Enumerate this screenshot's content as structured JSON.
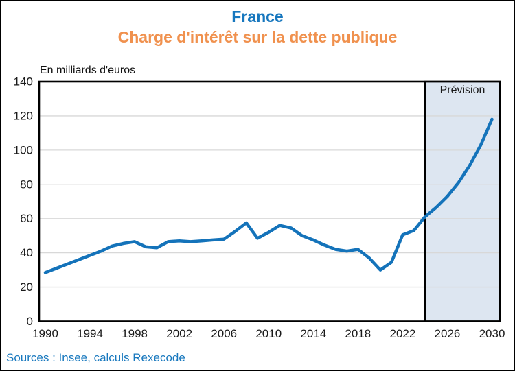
{
  "header": {
    "title": "France",
    "subtitle": "Charge d'intérêt sur la dette publique"
  },
  "footer": {
    "sources": "Sources : Insee, calculs Rexecode"
  },
  "chart_data": {
    "type": "line",
    "title": "France",
    "subtitle": "Charge d'intérêt sur la dette publique",
    "units_label": "En milliards d'euros",
    "x": [
      1990,
      1991,
      1992,
      1993,
      1994,
      1995,
      1996,
      1997,
      1998,
      1999,
      2000,
      2001,
      2002,
      2003,
      2004,
      2005,
      2006,
      2007,
      2008,
      2009,
      2010,
      2011,
      2012,
      2013,
      2014,
      2015,
      2016,
      2017,
      2018,
      2019,
      2020,
      2021,
      2022,
      2023,
      2024,
      2025,
      2026,
      2027,
      2028,
      2029,
      2030
    ],
    "series": [
      {
        "name": "Charge d'intérêt sur la dette publique (Md€)",
        "values": [
          28.5,
          31,
          33.5,
          36,
          38.5,
          41,
          44,
          45.5,
          46.5,
          43.5,
          43,
          46.5,
          47,
          46.5,
          47,
          47.5,
          48,
          52.5,
          57.5,
          48.5,
          52,
          56,
          54.5,
          50,
          47.5,
          44.5,
          42,
          41,
          42,
          37,
          30,
          34.5,
          50.5,
          53,
          61,
          66.5,
          73,
          81,
          91,
          103,
          118
        ]
      }
    ],
    "xticks": [
      1990,
      1994,
      1998,
      2002,
      2006,
      2010,
      2014,
      2018,
      2022,
      2026,
      2030
    ],
    "ylim": [
      0,
      140
    ],
    "ytick_step": 20,
    "grid": "horizontal",
    "legend": "none",
    "forecast": {
      "label": "Prévision",
      "start_year": 2024
    },
    "colors": {
      "title": "#1777BE",
      "subtitle": "#F0914E",
      "line": "#1473BA",
      "forecast_fill": "#DDE6F1",
      "gridline": "#D8D8D8",
      "axis_border": "#000000",
      "tick_text": "#1a1a1a",
      "sources": "#1878BE"
    }
  }
}
